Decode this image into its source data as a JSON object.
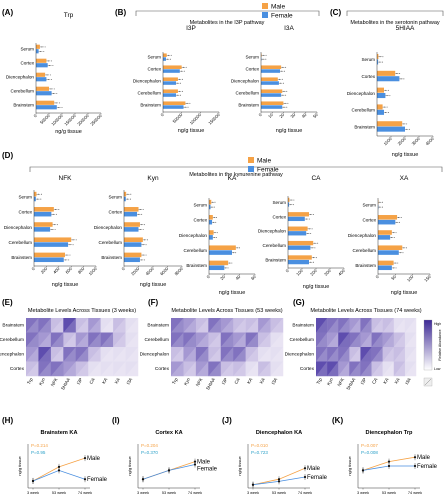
{
  "colors": {
    "male": "#F5A246",
    "female": "#4A8FE0",
    "axis": "#333333",
    "bracket": "#555555",
    "heatmap_low": "#ffffff",
    "heatmap_high": "#3E2A96"
  },
  "tissues": [
    "Serum",
    "Cortex",
    "Diencephalon",
    "Cerebellum",
    "Brainstem"
  ],
  "legend": {
    "male": "Male",
    "female": "Female"
  },
  "xlabel_common": "ng/g tissue",
  "panels": {
    "A": {
      "label": "(A)"
    },
    "B": {
      "label": "(B)",
      "group_title": "Metabolites in the I3P pathway"
    },
    "C": {
      "label": "(C)",
      "group_title": "Metabolites in the serotonin pathway"
    },
    "D": {
      "label": "(D)",
      "group_title": "Metabolites in the kynurenine pathway"
    },
    "E": {
      "label": "(E)"
    },
    "F": {
      "label": "(F)"
    },
    "G": {
      "label": "(G)"
    },
    "H": {
      "label": "(H)"
    },
    "I": {
      "label": "(I)"
    },
    "J": {
      "label": "(J)"
    },
    "K": {
      "label": "(K)"
    }
  },
  "heatmap_legend": {
    "high": "High",
    "low": "Low",
    "axis_title": "Relative Abundance"
  },
  "chart_data": [
    {
      "id": "A",
      "type": "bar",
      "title": "Trp",
      "orientation": "horizontal",
      "categories": [
        "Serum",
        "Cortex",
        "Diencephalon",
        "Cerebellum",
        "Brainstem"
      ],
      "series": [
        {
          "name": "Male",
          "values": [
            15000,
            40000,
            35000,
            50000,
            70000
          ]
        },
        {
          "name": "Female",
          "values": [
            10000,
            45000,
            40000,
            60000,
            80000
          ]
        }
      ],
      "xlabel": "ng/g tissue",
      "xlim": [
        0,
        250000
      ],
      "xticks": [
        0,
        50000,
        100000,
        150000,
        200000,
        250000
      ]
    },
    {
      "id": "B1",
      "type": "bar",
      "title": "I3P",
      "orientation": "horizontal",
      "categories": [
        "Serum",
        "Cortex",
        "Diencephalon",
        "Cerebellum",
        "Brainstem"
      ],
      "series": [
        {
          "name": "Male",
          "values": [
            10000,
            50000,
            40000,
            40000,
            60000
          ]
        },
        {
          "name": "Female",
          "values": [
            8000,
            45000,
            35000,
            35000,
            55000
          ]
        }
      ],
      "xlabel": "ng/g tissue",
      "xlim": [
        0,
        150000
      ],
      "xticks": [
        0,
        50000,
        100000,
        150000
      ]
    },
    {
      "id": "B2",
      "type": "bar",
      "title": "I3A",
      "orientation": "horizontal",
      "categories": [
        "Serum",
        "Cortex",
        "Diencephalon",
        "Cerebellum",
        "Brainstem"
      ],
      "series": [
        {
          "name": "Male",
          "values": [
            0.5,
            18,
            15,
            19,
            20
          ]
        },
        {
          "name": "Female",
          "values": [
            0.3,
            17,
            16,
            18,
            19
          ]
        }
      ],
      "xlabel": "ng/g tissue",
      "xlim": [
        0,
        50
      ],
      "xticks": [
        0,
        10,
        20,
        30,
        40,
        50
      ]
    },
    {
      "id": "C",
      "type": "bar",
      "title": "5HIAA",
      "orientation": "horizontal",
      "categories": [
        "Serum",
        "Cortex",
        "Diencephalon",
        "Cerebellum",
        "Brainstem"
      ],
      "series": [
        {
          "name": "Male",
          "values": [
            100,
            1300,
            500,
            400,
            1800
          ]
        },
        {
          "name": "Female",
          "values": [
            80,
            1600,
            600,
            500,
            2000
          ]
        }
      ],
      "xlabel": "ng/g tissue",
      "xlim": [
        0,
        4000
      ],
      "xticks": [
        1000,
        2000,
        3000,
        4000
      ]
    },
    {
      "id": "D1",
      "type": "bar",
      "title": "NFK",
      "orientation": "horizontal",
      "categories": [
        "Serum",
        "Cortex",
        "Diencephalon",
        "Cerebellum",
        "Brainstem"
      ],
      "series": [
        {
          "name": "Male",
          "values": [
            40,
            320,
            300,
            600,
            500
          ]
        },
        {
          "name": "Female",
          "values": [
            30,
            280,
            260,
            550,
            480
          ]
        }
      ],
      "xlabel": "ng/g tissue",
      "xlim": [
        0,
        1000
      ],
      "xticks": [
        0,
        200,
        400,
        600,
        800,
        1000
      ]
    },
    {
      "id": "D2",
      "type": "bar",
      "title": "Kyn",
      "orientation": "horizontal",
      "categories": [
        "Serum",
        "Cortex",
        "Diencephalon",
        "Cerebellum",
        "Brainstem"
      ],
      "series": [
        {
          "name": "Male",
          "values": [
            300,
            2000,
            2200,
            2600,
            2400
          ]
        },
        {
          "name": "Female",
          "values": [
            250,
            1800,
            2000,
            2400,
            2200
          ]
        }
      ],
      "xlabel": "ng/g tissue",
      "xlim": [
        0,
        8000
      ],
      "xticks": [
        0,
        2000,
        4000,
        6000,
        8000
      ]
    },
    {
      "id": "D3",
      "type": "bar",
      "title": "KA",
      "orientation": "horizontal",
      "categories": [
        "Serum",
        "Cortex",
        "Diencephalon",
        "Cerebellum",
        "Brainstem"
      ],
      "series": [
        {
          "name": "Male",
          "values": [
            3,
            5,
            6,
            35,
            25
          ]
        },
        {
          "name": "Female",
          "values": [
            2,
            4,
            5,
            30,
            20
          ]
        }
      ],
      "xlabel": "ng/g tissue",
      "xlim": [
        0,
        60
      ],
      "xticks": [
        0,
        20,
        40,
        60
      ]
    },
    {
      "id": "D4",
      "type": "bar",
      "title": "CA",
      "orientation": "horizontal",
      "categories": [
        "Serum",
        "Cortex",
        "Diencephalon",
        "Cerebellum",
        "Brainstem"
      ],
      "series": [
        {
          "name": "Male",
          "values": [
            10,
            150,
            140,
            180,
            170
          ]
        },
        {
          "name": "Female",
          "values": [
            8,
            120,
            130,
            160,
            150
          ]
        }
      ],
      "xlabel": "ng/g tissue",
      "xlim": [
        0,
        400
      ],
      "xticks": [
        0,
        100,
        200,
        300,
        400
      ]
    },
    {
      "id": "D5",
      "type": "bar",
      "title": "XA",
      "orientation": "horizontal",
      "categories": [
        "Serum",
        "Cortex",
        "Diencephalon",
        "Cerebellum",
        "Brainstem"
      ],
      "series": [
        {
          "name": "Male",
          "values": [
            1,
            55,
            40,
            70,
            45
          ]
        },
        {
          "name": "Female",
          "values": [
            0.8,
            50,
            35,
            60,
            40
          ]
        }
      ],
      "xlabel": "ng/g tissue",
      "xlim": [
        0,
        150
      ],
      "xticks": [
        0,
        50,
        100,
        150
      ]
    },
    {
      "id": "E",
      "type": "heatmap",
      "title": "Metabolite Levels Across Tissues (3 weeks)",
      "rows": [
        "Brainstem",
        "Cerebellum",
        "Diencephalon",
        "Cortex"
      ],
      "cols": [
        "Trp",
        "Kyn",
        "NFK",
        "5HIAA",
        "I3P",
        "CA",
        "KA",
        "XA",
        "I3A"
      ],
      "values": [
        [
          0.7,
          0.6,
          0.3,
          0.8,
          0.4,
          0.5,
          0.2,
          0.3,
          0.1
        ],
        [
          0.6,
          0.5,
          0.6,
          0.4,
          0.5,
          0.7,
          0.6,
          0.4,
          0.2
        ],
        [
          0.5,
          0.8,
          0.4,
          0.6,
          0.7,
          0.3,
          0.2,
          0.1,
          0.1
        ],
        [
          0.4,
          0.6,
          0.7,
          0.5,
          0.3,
          0.2,
          0.1,
          0.2,
          0.1
        ]
      ]
    },
    {
      "id": "F",
      "type": "heatmap",
      "title": "Metabolite Levels Across Tissues (53 weeks)",
      "rows": [
        "Brainstem",
        "Cerebellum",
        "Diencephalon",
        "Cortex"
      ],
      "cols": [
        "Trp",
        "Kyn",
        "NFK",
        "5HIAA",
        "I3P",
        "CA",
        "KA",
        "XA",
        "I3A"
      ],
      "values": [
        [
          0.7,
          0.5,
          0.4,
          0.6,
          0.5,
          0.4,
          0.3,
          0.5,
          0.3
        ],
        [
          0.6,
          0.7,
          0.5,
          0.3,
          0.6,
          0.5,
          0.6,
          0.4,
          0.2
        ],
        [
          0.4,
          0.5,
          0.6,
          0.4,
          0.7,
          0.6,
          0.3,
          0.2,
          0.1
        ],
        [
          0.5,
          0.4,
          0.5,
          0.6,
          0.4,
          0.3,
          0.2,
          0.3,
          0.2
        ]
      ]
    },
    {
      "id": "G",
      "type": "heatmap",
      "title": "Metabolite Levels Across Tissues (74 weeks)",
      "rows": [
        "Brainstem",
        "Cerebellum",
        "Diencephalon",
        "Cortex"
      ],
      "cols": [
        "Trp",
        "Kyn",
        "NFK",
        "5HIAA",
        "I3P",
        "CA",
        "KA",
        "XA",
        "I3A"
      ],
      "values": [
        [
          0.8,
          0.6,
          0.7,
          0.5,
          0.6,
          0.4,
          0.3,
          0.2,
          0.1
        ],
        [
          0.7,
          0.5,
          0.8,
          0.6,
          0.5,
          0.7,
          0.5,
          0.3,
          0.2
        ],
        [
          0.6,
          0.7,
          0.6,
          0.4,
          0.8,
          0.6,
          0.4,
          0.3,
          0.1
        ],
        [
          0.9,
          0.8,
          0.5,
          0.7,
          0.6,
          0.4,
          0.2,
          0.3,
          0.1
        ]
      ]
    },
    {
      "id": "H",
      "type": "line",
      "title": "Brainstem KA",
      "x": [
        "3 week",
        "53 week",
        "74 week"
      ],
      "series": [
        {
          "name": "Male",
          "values": [
            4,
            12,
            17
          ]
        },
        {
          "name": "Female",
          "values": [
            4,
            10,
            5
          ]
        }
      ],
      "ylabel": "ng/g tissue",
      "ylim": [
        0,
        25
      ],
      "annotations": [
        "P=0.214",
        "P=0.95"
      ]
    },
    {
      "id": "I",
      "type": "line",
      "title": "Cortex KA",
      "x": [
        "3 week",
        "53 week",
        "74 week"
      ],
      "series": [
        {
          "name": "Male",
          "values": [
            3,
            6,
            9
          ]
        },
        {
          "name": "Female",
          "values": [
            3,
            6,
            8
          ]
        }
      ],
      "ylabel": "ng/g tissue",
      "ylim": [
        0,
        15
      ],
      "annotations": [
        "P=0.204",
        "P=0.370"
      ]
    },
    {
      "id": "J",
      "type": "line",
      "title": "Diencephalon KA",
      "x": [
        "3 week",
        "53 week",
        "74 week"
      ],
      "series": [
        {
          "name": "Male",
          "values": [
            1.5,
            4,
            9
          ]
        },
        {
          "name": "Female",
          "values": [
            1.5,
            3,
            5
          ]
        }
      ],
      "ylabel": "ng/g tissue",
      "ylim": [
        0,
        20
      ],
      "annotations": [
        "P=0.010",
        "P=0.723"
      ]
    },
    {
      "id": "K",
      "type": "line",
      "title": "Diencephalon Trp",
      "x": [
        "3 week",
        "53 week",
        "74 week"
      ],
      "series": [
        {
          "name": "Male",
          "values": [
            40000,
            60000,
            70000
          ]
        },
        {
          "name": "Female",
          "values": [
            40000,
            50000,
            50000
          ]
        }
      ],
      "ylabel": "ng/g tissue",
      "ylim": [
        0,
        100000
      ],
      "annotations": [
        "P=0.007",
        "P=0.008"
      ]
    }
  ]
}
